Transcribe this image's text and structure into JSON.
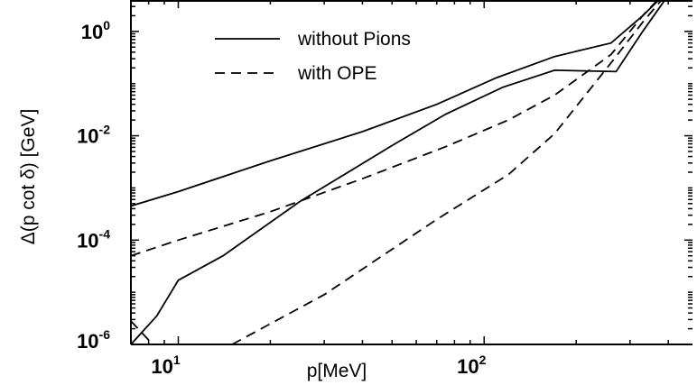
{
  "chart_data": {
    "type": "line",
    "title": "",
    "xlabel": "p[MeV]",
    "ylabel": "Δ(p cot δ) [GeV]",
    "x_scale": "log",
    "y_scale": "log",
    "xlim": [
      7,
      480
    ],
    "ylim": [
      1e-06,
      4
    ],
    "x_ticks": [
      {
        "value": 10,
        "base": "10",
        "exp": "1"
      },
      {
        "value": 100,
        "base": "10",
        "exp": "2"
      }
    ],
    "y_ticks": [
      {
        "value": 1,
        "base": "10",
        "exp": "0"
      },
      {
        "value": 0.01,
        "base": "10",
        "exp": "-2"
      },
      {
        "value": 0.0001,
        "base": "10",
        "exp": "-4"
      },
      {
        "value": 1e-06,
        "base": "10",
        "exp": "-6"
      }
    ],
    "grid": false,
    "legend_position": "top-center",
    "series": [
      {
        "name": "without Pions",
        "style": "solid",
        "x": [
          7,
          10,
          20,
          40,
          70,
          110,
          170,
          260,
          330,
          420
        ],
        "y": [
          0.00045,
          0.00085,
          0.0033,
          0.012,
          0.04,
          0.13,
          0.33,
          0.6,
          2.0,
          8.0
        ]
      },
      {
        "name": "",
        "style": "solid",
        "x": [
          7,
          8.5,
          10,
          14,
          25,
          50,
          75,
          115,
          170,
          270,
          330,
          430
        ],
        "y": [
          1e-06,
          3.5e-06,
          1.7e-05,
          5e-05,
          0.00055,
          0.0065,
          0.026,
          0.085,
          0.18,
          0.17,
          1.0,
          9.0
        ]
      },
      {
        "name": "with OPE",
        "style": "dashed",
        "x": [
          7,
          10,
          20,
          40,
          75,
          120,
          170,
          260,
          330,
          420
        ],
        "y": [
          5e-05,
          0.0001,
          0.00035,
          0.0015,
          0.0062,
          0.02,
          0.06,
          0.36,
          2.0,
          9.0
        ]
      },
      {
        "name": "",
        "style": "dashed",
        "x": [
          7,
          10
        ],
        "y": [
          2.8e-06,
          3e-07
        ]
      },
      {
        "name": "",
        "style": "dashed",
        "x": [
          15,
          30,
          70,
          120,
          170,
          260,
          330,
          420
        ],
        "y": [
          1e-06,
          9e-06,
          0.00025,
          0.0018,
          0.011,
          0.25,
          1.5,
          8.0
        ]
      }
    ]
  }
}
